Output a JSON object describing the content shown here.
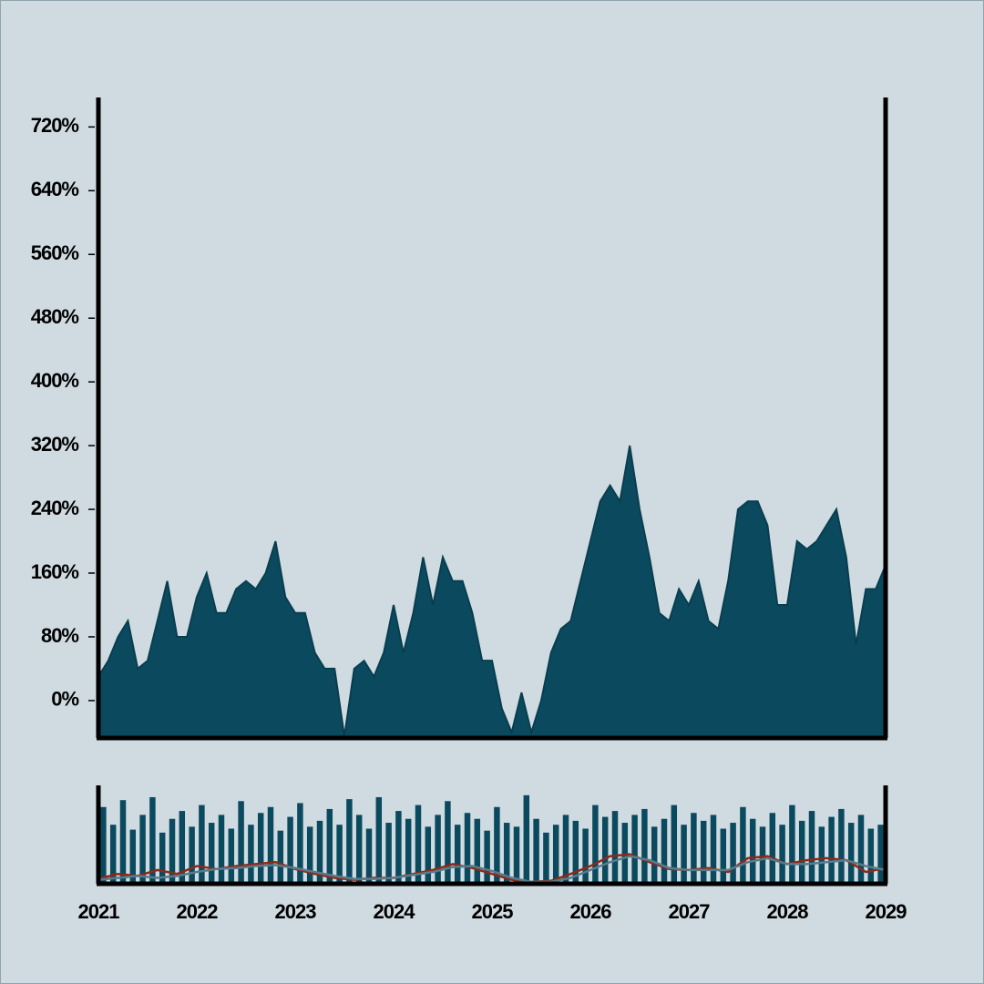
{
  "chart_data": [
    {
      "type": "area",
      "color": "#0b4a5e",
      "x": [
        2021.0,
        2021.1,
        2021.2,
        2021.3,
        2021.4,
        2021.5,
        2021.6,
        2021.7,
        2021.8,
        2021.9,
        2022.0,
        2022.1,
        2022.2,
        2022.3,
        2022.4,
        2022.5,
        2022.6,
        2022.7,
        2022.8,
        2022.9,
        2023.0,
        2023.1,
        2023.2,
        2023.3,
        2023.4,
        2023.5,
        2023.6,
        2023.7,
        2023.8,
        2023.9,
        2024.0,
        2024.1,
        2024.2,
        2024.3,
        2024.4,
        2024.5,
        2024.6,
        2024.7,
        2024.8,
        2024.9,
        2025.0,
        2025.1,
        2025.2,
        2025.3,
        2025.4,
        2025.5,
        2025.6,
        2025.7,
        2025.8,
        2025.9,
        2026.0,
        2026.1,
        2026.2,
        2026.3,
        2026.4,
        2026.5,
        2026.6,
        2026.7,
        2026.8,
        2026.9,
        2027.0,
        2027.1,
        2027.2,
        2027.3,
        2027.4,
        2027.5,
        2027.6,
        2027.7,
        2027.8,
        2027.9,
        2028.0,
        2028.1,
        2028.2,
        2028.3,
        2028.4,
        2028.5,
        2028.6,
        2028.7,
        2028.8,
        2028.9,
        2029.0
      ],
      "values": [
        30,
        50,
        80,
        100,
        40,
        50,
        100,
        150,
        80,
        80,
        130,
        160,
        110,
        110,
        140,
        150,
        140,
        160,
        200,
        130,
        110,
        110,
        60,
        40,
        40,
        -45,
        40,
        50,
        30,
        60,
        120,
        60,
        110,
        180,
        120,
        180,
        150,
        150,
        110,
        50,
        50,
        -10,
        -40,
        10,
        -40,
        0,
        60,
        90,
        100,
        150,
        200,
        250,
        270,
        250,
        320,
        240,
        180,
        110,
        100,
        140,
        120,
        150,
        100,
        90,
        150,
        240,
        250,
        250,
        220,
        120,
        120,
        200,
        190,
        200,
        220,
        240,
        180,
        70,
        140,
        140,
        170
      ],
      "xlim": [
        2021,
        2029
      ],
      "ylim": [
        -47,
        757
      ],
      "yticks": [
        {
          "value": 0,
          "label": "0%"
        },
        {
          "value": 80,
          "label": "80%"
        },
        {
          "value": 160,
          "label": "160%"
        },
        {
          "value": 240,
          "label": "240%"
        },
        {
          "value": 320,
          "label": "320%"
        },
        {
          "value": 400,
          "label": "400%"
        },
        {
          "value": 480,
          "label": "480%"
        },
        {
          "value": 560,
          "label": "560%"
        },
        {
          "value": 640,
          "label": "640%"
        },
        {
          "value": 720,
          "label": "720%"
        }
      ]
    },
    {
      "type": "bar",
      "color": "#0b4a5e",
      "x": [
        2021.05,
        2021.15,
        2021.25,
        2021.35,
        2021.45,
        2021.55,
        2021.65,
        2021.75,
        2021.85,
        2021.95,
        2022.05,
        2022.15,
        2022.25,
        2022.35,
        2022.45,
        2022.55,
        2022.65,
        2022.75,
        2022.85,
        2022.95,
        2023.05,
        2023.15,
        2023.25,
        2023.35,
        2023.45,
        2023.55,
        2023.65,
        2023.75,
        2023.85,
        2023.95,
        2024.05,
        2024.15,
        2024.25,
        2024.35,
        2024.45,
        2024.55,
        2024.65,
        2024.75,
        2024.85,
        2024.95,
        2025.05,
        2025.15,
        2025.25,
        2025.35,
        2025.45,
        2025.55,
        2025.65,
        2025.75,
        2025.85,
        2025.95,
        2026.05,
        2026.15,
        2026.25,
        2026.35,
        2026.45,
        2026.55,
        2026.65,
        2026.75,
        2026.85,
        2026.95,
        2027.05,
        2027.15,
        2027.25,
        2027.35,
        2027.45,
        2027.55,
        2027.65,
        2027.75,
        2027.85,
        2027.95,
        2028.05,
        2028.15,
        2028.25,
        2028.35,
        2028.45,
        2028.55,
        2028.65,
        2028.75,
        2028.85,
        2028.95
      ],
      "values": [
        78,
        60,
        85,
        55,
        70,
        88,
        52,
        66,
        74,
        58,
        80,
        62,
        70,
        56,
        84,
        60,
        72,
        78,
        54,
        68,
        82,
        58,
        64,
        76,
        60,
        86,
        70,
        56,
        88,
        62,
        74,
        66,
        80,
        58,
        70,
        84,
        60,
        72,
        66,
        54,
        78,
        62,
        58,
        90,
        66,
        52,
        60,
        70,
        64,
        56,
        80,
        68,
        74,
        62,
        70,
        76,
        58,
        66,
        80,
        60,
        72,
        64,
        70,
        56,
        62,
        78,
        66,
        58,
        72,
        60,
        80,
        64,
        74,
        58,
        68,
        76,
        62,
        70,
        56,
        60
      ],
      "ylim": [
        0,
        100
      ],
      "xlim": [
        2021,
        2029
      ],
      "xticks": [
        2021,
        2022,
        2023,
        2024,
        2025,
        2026,
        2027,
        2028,
        2029
      ],
      "series": [
        {
          "color": "#8b2a1a",
          "x": [
            2021.0,
            2021.2,
            2021.4,
            2021.6,
            2021.8,
            2022.0,
            2022.2,
            2022.4,
            2022.6,
            2022.8,
            2023.0,
            2023.2,
            2023.4,
            2023.6,
            2023.8,
            2024.0,
            2024.2,
            2024.4,
            2024.6,
            2024.8,
            2025.0,
            2025.2,
            2025.4,
            2025.6,
            2025.8,
            2026.0,
            2026.2,
            2026.4,
            2026.6,
            2026.8,
            2027.0,
            2027.2,
            2027.4,
            2027.6,
            2027.8,
            2028.0,
            2028.2,
            2028.4,
            2028.6,
            2028.8,
            2029.0
          ],
          "values": [
            5,
            10,
            8,
            14,
            10,
            18,
            15,
            18,
            20,
            22,
            15,
            10,
            6,
            4,
            6,
            6,
            10,
            14,
            20,
            16,
            10,
            4,
            2,
            3,
            10,
            18,
            28,
            30,
            22,
            15,
            14,
            16,
            12,
            26,
            28,
            20,
            24,
            26,
            24,
            12,
            16
          ]
        },
        {
          "color": "#5a7a8a",
          "x": [
            2021.0,
            2021.2,
            2021.4,
            2021.6,
            2021.8,
            2022.0,
            2022.2,
            2022.4,
            2022.6,
            2022.8,
            2023.0,
            2023.2,
            2023.4,
            2023.6,
            2023.8,
            2024.0,
            2024.2,
            2024.4,
            2024.6,
            2024.8,
            2025.0,
            2025.2,
            2025.4,
            2025.6,
            2025.8,
            2026.0,
            2026.2,
            2026.4,
            2026.6,
            2026.8,
            2027.0,
            2027.2,
            2027.4,
            2027.6,
            2027.8,
            2028.0,
            2028.2,
            2028.4,
            2028.6,
            2028.8,
            2029.0
          ],
          "values": [
            4,
            6,
            8,
            6,
            8,
            12,
            15,
            16,
            18,
            19,
            16,
            12,
            8,
            5,
            5,
            6,
            9,
            12,
            17,
            18,
            13,
            6,
            2,
            2,
            6,
            14,
            22,
            28,
            24,
            16,
            14,
            14,
            14,
            22,
            26,
            20,
            20,
            22,
            24,
            18,
            14
          ]
        }
      ]
    }
  ]
}
